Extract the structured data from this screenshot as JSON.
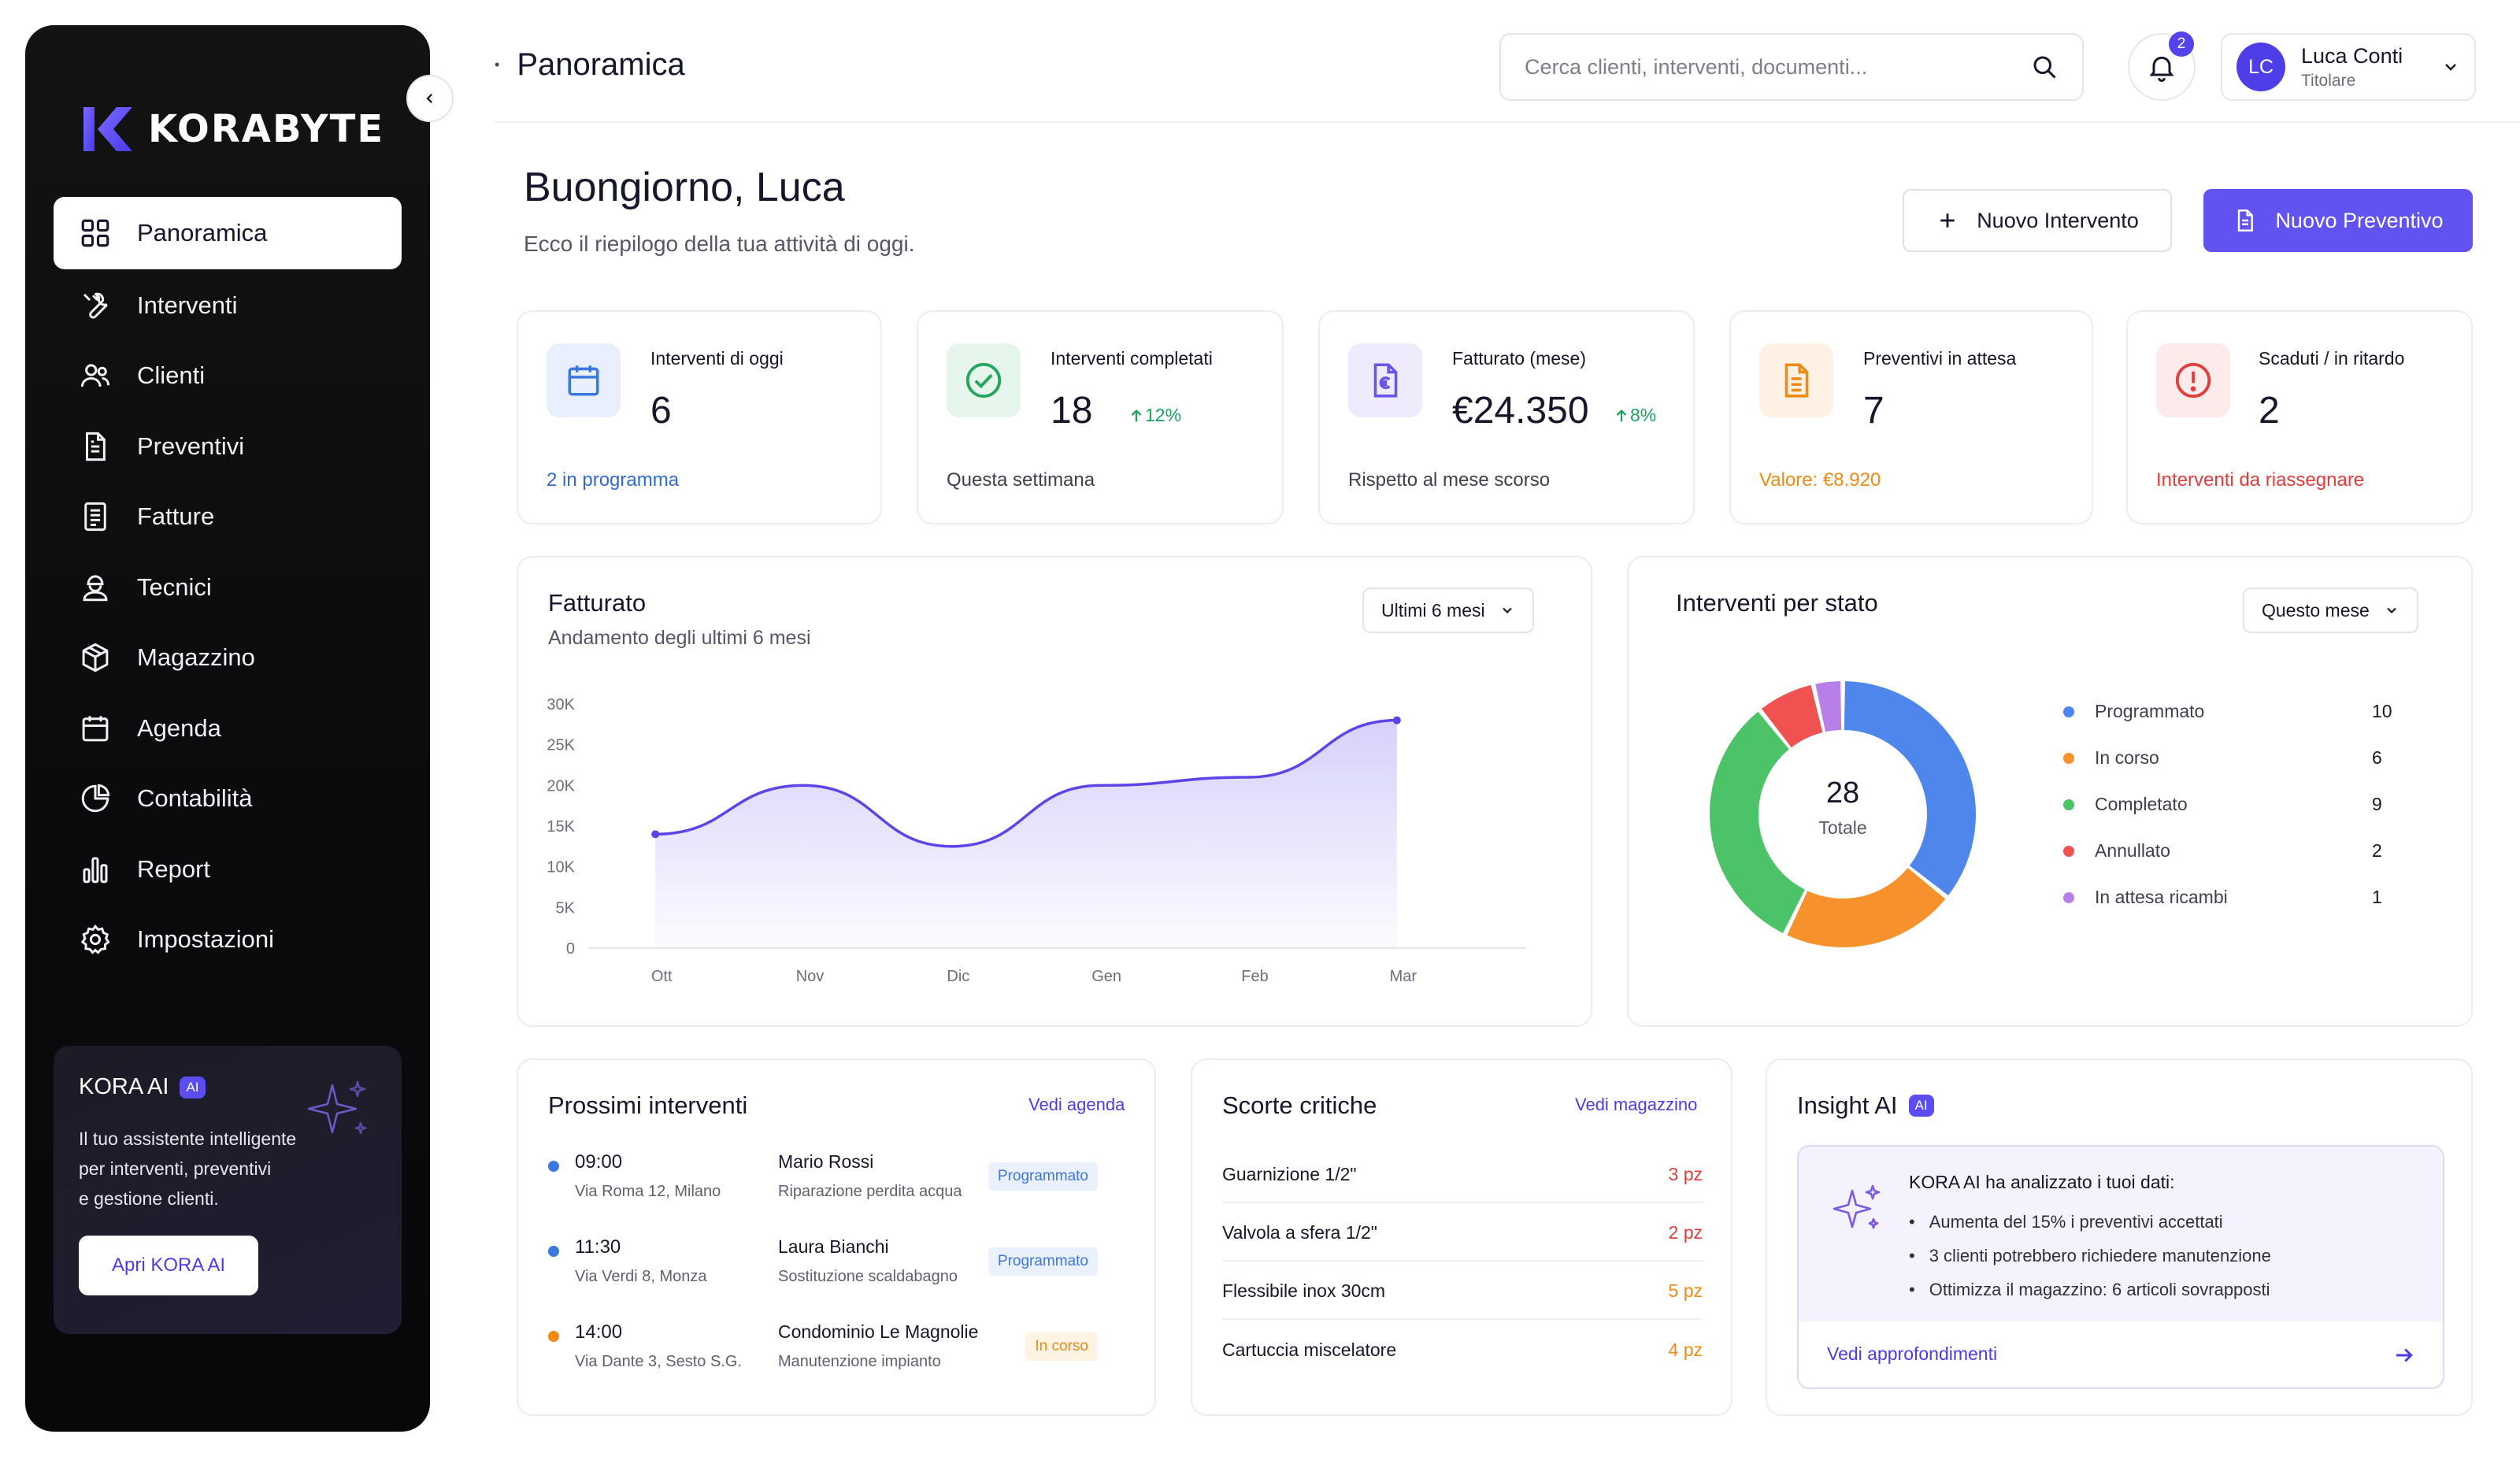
{
  "brand": {
    "name": "KORABYTE"
  },
  "sidebar": {
    "items": [
      {
        "label": "Panoramica",
        "icon": "grid-icon"
      },
      {
        "label": "Interventi",
        "icon": "wrench-icon"
      },
      {
        "label": "Clienti",
        "icon": "users-icon"
      },
      {
        "label": "Preventivi",
        "icon": "document-icon"
      },
      {
        "label": "Fatture",
        "icon": "invoice-icon"
      },
      {
        "label": "Tecnici",
        "icon": "technician-icon"
      },
      {
        "label": "Magazzino",
        "icon": "box-icon"
      },
      {
        "label": "Agenda",
        "icon": "calendar-icon"
      },
      {
        "label": "Contabilità",
        "icon": "pie-icon"
      },
      {
        "label": "Report",
        "icon": "bar-chart-icon"
      },
      {
        "label": "Impostazioni",
        "icon": "gear-icon"
      }
    ],
    "active": "Panoramica"
  },
  "ai_card": {
    "title": "KORA AI",
    "badge": "AI",
    "line1": "Il tuo assistente intelligente",
    "line2": "per interventi, preventivi",
    "line3": "e gestione clienti.",
    "button": "Apri KORA AI"
  },
  "topbar": {
    "breadcrumb": "Panoramica",
    "search_placeholder": "Cerca clienti, interventi, documenti...",
    "notifications": "2",
    "user": {
      "initials": "LC",
      "name": "Luca Conti",
      "role": "Titolare"
    }
  },
  "header": {
    "greeting": "Buongiorno, Luca",
    "subtitle": "Ecco il riepilogo della tua attività di oggi.",
    "btn_new_intervention": "Nuovo Intervento",
    "btn_new_quote": "Nuovo Preventivo"
  },
  "kpis": [
    {
      "label": "Interventi di oggi",
      "value": "6",
      "trend": "",
      "footer": "2 in programma",
      "footer_color": "#2f6bd8",
      "icon": "calendar-icon",
      "icon_bg": "#e8f0fd",
      "icon_color": "#3a78e0"
    },
    {
      "label": "Interventi completati",
      "value": "18",
      "trend": "12%",
      "footer": "Questa settimana",
      "footer_color": "#3c3f4e",
      "icon": "check-circle-icon",
      "icon_bg": "#e6f6ec",
      "icon_color": "#24a55a"
    },
    {
      "label": "Fatturato (mese)",
      "value": "€24.350",
      "trend": "8%",
      "footer": "Rispetto al mese scorso",
      "footer_color": "#3c3f4e",
      "icon": "euro-document-icon",
      "icon_bg": "#efebfd",
      "icon_color": "#6a55ea"
    },
    {
      "label": "Preventivi in attesa",
      "value": "7",
      "trend": "",
      "footer": "Valore: €8.920",
      "footer_color": "#f08a12",
      "icon": "document-icon",
      "icon_bg": "#fff1e3",
      "icon_color": "#f08a12"
    },
    {
      "label": "Scaduti / in ritardo",
      "value": "2",
      "trend": "",
      "footer": "Interventi da riassegnare",
      "footer_color": "#e43b3b",
      "icon": "alert-icon",
      "icon_bg": "#fdeaea",
      "icon_color": "#e43b3b"
    }
  ],
  "revenue": {
    "title": "Fatturato",
    "subtitle": "Andamento degli ultimi 6 mesi",
    "range": "Ultimi 6 mesi"
  },
  "status": {
    "title": "Interventi per stato",
    "range": "Questo mese",
    "total": "28",
    "total_label": "Totale"
  },
  "chart_data": [
    {
      "type": "area",
      "title": "Fatturato",
      "categories": [
        "Ott",
        "Nov",
        "Dic",
        "Gen",
        "Feb",
        "Mar"
      ],
      "series": [
        {
          "values": [
            14000,
            20000,
            12500,
            20000,
            21000,
            28000
          ]
        }
      ],
      "y_ticks": [
        "0",
        "5K",
        "10K",
        "15K",
        "20K",
        "25K",
        "30K"
      ],
      "ylim": [
        0,
        30000
      ],
      "color": "#5a46e6"
    },
    {
      "type": "pie",
      "title": "Interventi per stato",
      "labels": [
        "Programmato",
        "In corso",
        "Completato",
        "Annullato",
        "In attesa ricambi"
      ],
      "values": [
        10,
        6,
        9,
        2,
        1
      ],
      "colors": [
        "#4f86ec",
        "#f5922c",
        "#4cc269",
        "#f05252",
        "#b97fe8"
      ]
    }
  ],
  "schedule": {
    "title": "Prossimi interventi",
    "link": "Vedi agenda",
    "items": [
      {
        "time": "09:00",
        "address": "Via Roma 12, Milano",
        "client": "Mario Rossi",
        "job": "Riparazione perdita acqua",
        "status": "Programmato",
        "dot": "#3a78e0",
        "status_color": "#3a78e0",
        "status_bg": "#eaf1fd"
      },
      {
        "time": "11:30",
        "address": "Via Verdi 8, Monza",
        "client": "Laura Bianchi",
        "job": "Sostituzione scaldabagno",
        "status": "Programmato",
        "dot": "#3a78e0",
        "status_color": "#3a78e0",
        "status_bg": "#eaf1fd"
      },
      {
        "time": "14:00",
        "address": "Via Dante 3, Sesto S.G.",
        "client": "Condominio Le Magnolie",
        "job": "Manutenzione impianto",
        "status": "In corso",
        "dot": "#f08a12",
        "status_color": "#f08a12",
        "status_bg": "#fff3e4"
      }
    ]
  },
  "stock": {
    "title": "Scorte critiche",
    "link": "Vedi magazzino",
    "items": [
      {
        "name": "Guarnizione 1/2\"",
        "qty": "3 pz",
        "color": "#e43b3b"
      },
      {
        "name": "Valvola a sfera 1/2\"",
        "qty": "2 pz",
        "color": "#e43b3b"
      },
      {
        "name": "Flessibile inox 30cm",
        "qty": "5 pz",
        "color": "#f08a12"
      },
      {
        "name": "Cartuccia miscelatore",
        "qty": "4 pz",
        "color": "#f08a12"
      }
    ]
  },
  "insight": {
    "title": "Insight AI",
    "badge": "AI",
    "heading": "KORA AI ha analizzato i tuoi dati:",
    "bullets": [
      "Aumenta del 15% i preventivi accettati",
      "3 clienti potrebbero richiedere manutenzione",
      "Ottimizza il magazzino: 6 articoli sovrapposti"
    ],
    "link": "Vedi approfondimenti"
  }
}
